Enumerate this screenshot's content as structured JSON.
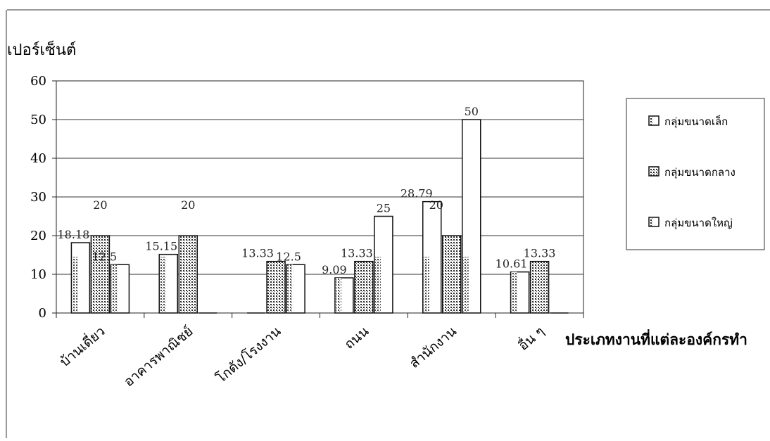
{
  "chart_data": {
    "type": "bar",
    "ylabel": "เปอร์เซ็นต์",
    "xlabel": "ประเภทงานที่แต่ละองค์กรทำ",
    "categories": [
      "บ้านเดี่ยว",
      "อาคารพาณิชย์",
      "โกดัง/โรงงาน",
      "ถนน",
      "สำนักงาน",
      "อื่น ๆ"
    ],
    "ylim": [
      0,
      60
    ],
    "yticks": [
      0,
      10,
      20,
      30,
      40,
      50,
      60
    ],
    "grid": true,
    "legend_position": "right",
    "series": [
      {
        "name": "กลุ่มขนาดเล็ก",
        "values": [
          18.18,
          15.15,
          0,
          9.09,
          28.79,
          10.61
        ],
        "labels": [
          "18.18",
          "15.15",
          "",
          "9.09",
          "28.79",
          "10.61"
        ]
      },
      {
        "name": "กลุ่มขนาดกลาง",
        "values": [
          20,
          20,
          13.33,
          13.33,
          20,
          13.33
        ],
        "labels": [
          "20",
          "20",
          "13.33",
          "13.33",
          "20",
          "13.33"
        ]
      },
      {
        "name": "กลุ่มขนาดใหญ่",
        "values": [
          12.5,
          0,
          12.5,
          25,
          50,
          0
        ],
        "labels": [
          "12.5",
          "",
          "12.5",
          "25",
          "50",
          ""
        ]
      }
    ]
  },
  "colors": {
    "bar_fill": "#ffffff",
    "bar_stroke": "#111111",
    "texture": "#2a2a2a"
  }
}
